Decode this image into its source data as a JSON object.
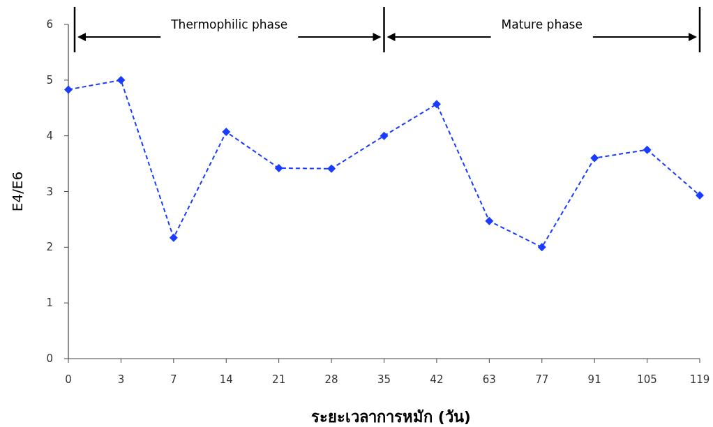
{
  "chart_data": {
    "type": "line",
    "xlabel": "ระยะเวลาการหมัก (วัน)",
    "ylabel": "E4/E6",
    "categories": [
      "0",
      "3",
      "7",
      "14",
      "21",
      "28",
      "35",
      "42",
      "63",
      "77",
      "91",
      "105",
      "119"
    ],
    "series": [
      {
        "color": "#1a3cff",
        "values": [
          4.83,
          5.0,
          2.17,
          4.07,
          3.42,
          3.41,
          4.0,
          4.57,
          2.47,
          2.0,
          3.6,
          3.75,
          2.93
        ]
      }
    ],
    "ylim": [
      0,
      6
    ],
    "yticks": [
      0,
      1,
      2,
      3,
      4,
      5,
      6
    ],
    "grid": false,
    "marker": "diamond",
    "line_style": "dashed",
    "ref_lines": [
      {
        "axis": "x",
        "value": "0",
        "color": "#000000"
      },
      {
        "axis": "x",
        "value": "35",
        "color": "#000000"
      },
      {
        "axis": "x",
        "value": "119",
        "color": "#000000"
      }
    ],
    "annotations": [
      "Thermophilic phase",
      "Mature phase"
    ]
  }
}
